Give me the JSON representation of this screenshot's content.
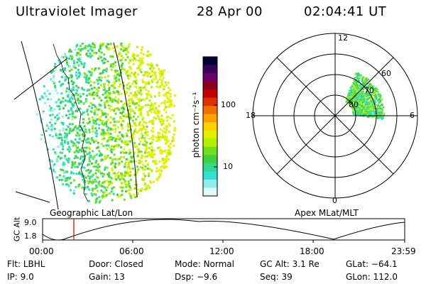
{
  "header": {
    "instrument": "Ultraviolet Imager",
    "date": "28 Apr 00",
    "time": "02:04:41 UT"
  },
  "image": {
    "caption": "Geographic Lat/Lon"
  },
  "colorbar": {
    "units": "photon cm⁻²s⁻¹",
    "ticks": [
      "100",
      "10"
    ],
    "colors": [
      "#000033",
      "#3a005a",
      "#6a006a",
      "#8a0018",
      "#c40000",
      "#e03000",
      "#f07000",
      "#ffa000",
      "#ffd000",
      "#e0f000",
      "#b0f000",
      "#70e020",
      "#40d040",
      "#30d890",
      "#30e0d0",
      "#90ecec",
      "#e0f8f8"
    ]
  },
  "polar": {
    "caption": "Apex MLat/MLT",
    "mlt_labels": {
      "top": "12",
      "bottom": "0",
      "left": "18",
      "right": "6"
    },
    "lat_labels": [
      "60",
      "70",
      "80"
    ]
  },
  "timeline": {
    "axis_label": "GC Alt",
    "y_ticks": [
      "9.0",
      "1.8"
    ],
    "x_ticks": [
      "00:00",
      "06:00",
      "12:00",
      "18:00",
      "23:59"
    ],
    "marker_color": "#d00000"
  },
  "status": {
    "row1": [
      {
        "label": "Flt:",
        "value": "LBHL"
      },
      {
        "label": "Door:",
        "value": "Closed"
      },
      {
        "label": "Mode:",
        "value": "Normal"
      },
      {
        "label": "GC Alt:",
        "value": "3.1 Re"
      },
      {
        "label": "GLat:",
        "value": "−64.1"
      }
    ],
    "row2": [
      {
        "label": "IP:",
        "value": "9.0"
      },
      {
        "label": "Gain:",
        "value": "13"
      },
      {
        "label": "Dsp:",
        "value": "−9.6"
      },
      {
        "label": "Seq:",
        "value": "39"
      },
      {
        "label": "GLon:",
        "value": "112.0"
      }
    ]
  }
}
